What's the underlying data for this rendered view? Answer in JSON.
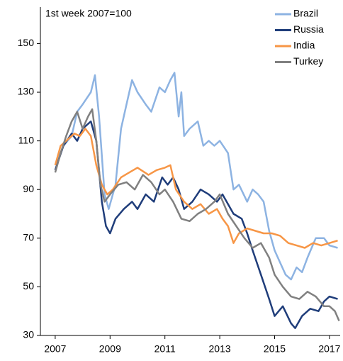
{
  "chart_data": {
    "type": "line",
    "annotation": "1st week 2007=100",
    "xlim": [
      2006.46,
      2017.39
    ],
    "xticks": [
      2007,
      2009,
      2011,
      2013,
      2015,
      2017
    ],
    "ylim": [
      30,
      165
    ],
    "yticks": [
      30,
      50,
      70,
      90,
      110,
      130,
      150
    ],
    "legend": "top-right",
    "series": [
      {
        "name": "Brazil",
        "color": "#8db3e2",
        "x": [
          2007.0,
          2007.3,
          2007.6,
          2007.8,
          2008.0,
          2008.3,
          2008.45,
          2008.6,
          2008.8,
          2008.95,
          2009.2,
          2009.4,
          2009.6,
          2009.8,
          2010.0,
          2010.3,
          2010.5,
          2010.8,
          2011.0,
          2011.2,
          2011.35,
          2011.5,
          2011.6,
          2011.7,
          2011.9,
          2012.2,
          2012.4,
          2012.6,
          2012.8,
          2013.0,
          2013.3,
          2013.5,
          2013.7,
          2014.0,
          2014.2,
          2014.4,
          2014.6,
          2014.8,
          2015.0,
          2015.2,
          2015.4,
          2015.6,
          2015.8,
          2016.0,
          2016.2,
          2016.5,
          2016.8,
          2017.0,
          2017.3
        ],
        "values": [
          100,
          108,
          112,
          122,
          125,
          130,
          137,
          120,
          88,
          82,
          92,
          115,
          125,
          135,
          130,
          125,
          122,
          132,
          130,
          135,
          138,
          120,
          130,
          112,
          115,
          118,
          108,
          110,
          108,
          110,
          105,
          90,
          92,
          85,
          90,
          88,
          85,
          73,
          65,
          60,
          55,
          53,
          58,
          56,
          62,
          70,
          70,
          67,
          66
        ]
      },
      {
        "name": "Russia",
        "color": "#1f3d7a",
        "x": [
          2007.0,
          2007.3,
          2007.6,
          2007.8,
          2008.0,
          2008.3,
          2008.5,
          2008.7,
          2008.85,
          2009.0,
          2009.2,
          2009.5,
          2009.8,
          2010.0,
          2010.3,
          2010.6,
          2010.9,
          2011.1,
          2011.3,
          2011.5,
          2011.7,
          2012.0,
          2012.3,
          2012.6,
          2012.9,
          2013.1,
          2013.5,
          2013.8,
          2014.0,
          2014.2,
          2014.5,
          2014.8,
          2015.0,
          2015.3,
          2015.6,
          2015.75,
          2016.0,
          2016.3,
          2016.6,
          2016.8,
          2017.0,
          2017.3
        ],
        "values": [
          98,
          108,
          113,
          110,
          115,
          118,
          110,
          85,
          75,
          72,
          78,
          82,
          85,
          82,
          88,
          85,
          95,
          92,
          95,
          90,
          82,
          85,
          90,
          88,
          85,
          88,
          80,
          78,
          72,
          65,
          55,
          45,
          38,
          42,
          35,
          33,
          38,
          41,
          40,
          44,
          46,
          45
        ]
      },
      {
        "name": "India",
        "color": "#f79646",
        "x": [
          2007.0,
          2007.2,
          2007.4,
          2007.7,
          2007.9,
          2008.1,
          2008.3,
          2008.5,
          2008.7,
          2008.9,
          2009.1,
          2009.4,
          2009.7,
          2010.0,
          2010.4,
          2010.7,
          2011.0,
          2011.2,
          2011.4,
          2011.7,
          2012.0,
          2012.3,
          2012.6,
          2012.9,
          2013.1,
          2013.3,
          2013.5,
          2013.7,
          2014.0,
          2014.3,
          2014.6,
          2014.9,
          2015.2,
          2015.5,
          2015.8,
          2016.1,
          2016.4,
          2016.7,
          2017.0,
          2017.3
        ],
        "values": [
          100,
          108,
          110,
          113,
          112,
          115,
          112,
          100,
          92,
          88,
          90,
          95,
          97,
          99,
          96,
          98,
          99,
          100,
          90,
          85,
          82,
          84,
          80,
          82,
          78,
          75,
          68,
          72,
          74,
          73,
          72,
          72,
          71,
          68,
          67,
          66,
          68,
          67,
          68,
          69
        ]
      },
      {
        "name": "Turkey",
        "color": "#808080",
        "x": [
          2007.0,
          2007.2,
          2007.4,
          2007.6,
          2007.8,
          2008.0,
          2008.2,
          2008.35,
          2008.5,
          2008.65,
          2008.8,
          2009.0,
          2009.3,
          2009.6,
          2009.9,
          2010.2,
          2010.5,
          2010.8,
          2011.0,
          2011.3,
          2011.6,
          2011.9,
          2012.2,
          2012.5,
          2012.8,
          2013.0,
          2013.3,
          2013.6,
          2013.9,
          2014.2,
          2014.5,
          2014.8,
          2015.0,
          2015.3,
          2015.6,
          2015.9,
          2016.2,
          2016.5,
          2016.8,
          2017.0,
          2017.2,
          2017.35
        ],
        "values": [
          97,
          105,
          112,
          118,
          122,
          115,
          120,
          123,
          110,
          92,
          85,
          88,
          92,
          93,
          90,
          96,
          93,
          88,
          90,
          85,
          78,
          77,
          80,
          82,
          85,
          88,
          80,
          75,
          70,
          66,
          68,
          62,
          55,
          50,
          46,
          45,
          48,
          46,
          42,
          42,
          40,
          36
        ]
      }
    ]
  }
}
